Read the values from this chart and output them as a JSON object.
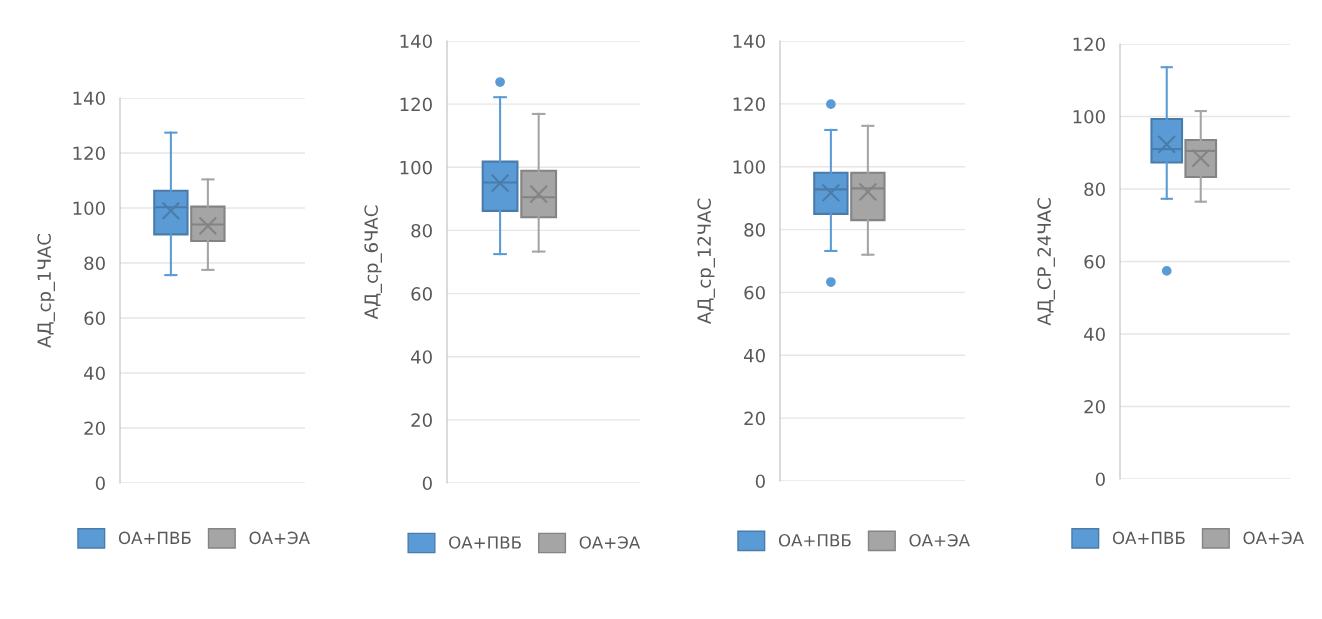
{
  "chart_data": [
    {
      "type": "box",
      "ylabel": "АД_ср_1ЧАС",
      "categories": [
        null
      ],
      "ylim": [
        0,
        140
      ],
      "yticks": [
        0,
        20,
        40,
        60,
        80,
        100,
        120,
        140
      ],
      "grid": "y",
      "legend": "bottom",
      "series": [
        {
          "name": "ОА+ПВБ",
          "color": "#5b9bd5",
          "boxes": [
            {
              "low": 75.6,
              "q1": 90.4,
              "median": 100.3,
              "q3": 106.3,
              "high": 127.4,
              "mean": 99
            }
          ]
        },
        {
          "name": "ОА+ЭА",
          "color": "#a5a5a5",
          "boxes": [
            {
              "low": 77.5,
              "q1": 88,
              "median": 94,
              "q3": 100.5,
              "high": 110.4,
              "mean": 93.5
            }
          ]
        }
      ]
    },
    {
      "type": "box",
      "ylabel": "АД_ср_6ЧАС",
      "categories": [
        null
      ],
      "ylim": [
        0,
        140
      ],
      "yticks": [
        0,
        20,
        40,
        60,
        80,
        100,
        120,
        140
      ],
      "grid": "y",
      "legend": "bottom",
      "series": [
        {
          "name": "ОА+ПВБ",
          "color": "#5b9bd5",
          "boxes": [
            {
              "low": 72.5,
              "q1": 86.2,
              "median": 95.2,
              "q3": 101.8,
              "high": 122.2,
              "mean": 95,
              "outliers": [
                127
              ]
            }
          ]
        },
        {
          "name": "ОА+ЭА",
          "color": "#a5a5a5",
          "boxes": [
            {
              "low": 73.3,
              "q1": 84.2,
              "median": 90.5,
              "q3": 98.9,
              "high": 116.9,
              "mean": 91.5
            }
          ]
        }
      ]
    },
    {
      "type": "box",
      "ylabel": "АД_ср_12ЧАС",
      "categories": [
        null
      ],
      "ylim": [
        0,
        140
      ],
      "yticks": [
        0,
        20,
        40,
        60,
        80,
        100,
        120,
        140
      ],
      "grid": "y",
      "legend": "bottom",
      "series": [
        {
          "name": "ОА+ПВБ",
          "color": "#5b9bd5",
          "boxes": [
            {
              "low": 73.2,
              "q1": 85,
              "median": 92.8,
              "q3": 98.1,
              "high": 111.7,
              "mean": 91.7,
              "outliers": [
                119.9,
                63.3
              ]
            }
          ]
        },
        {
          "name": "ОА+ЭА",
          "color": "#a5a5a5",
          "boxes": [
            {
              "low": 72,
              "q1": 83,
              "median": 93.1,
              "q3": 98.1,
              "high": 113,
              "mean": 92
            }
          ]
        }
      ]
    },
    {
      "type": "box",
      "ylabel": "АД_СР_24ЧАС",
      "categories": [
        null
      ],
      "ylim": [
        0,
        120
      ],
      "yticks": [
        0,
        20,
        40,
        60,
        80,
        100,
        120
      ],
      "grid": "y",
      "legend": "bottom",
      "series": [
        {
          "name": "ОА+ПВБ",
          "color": "#5b9bd5",
          "boxes": [
            {
              "low": 77.3,
              "q1": 87.3,
              "median": 91,
              "q3": 99.3,
              "high": 113.6,
              "mean": 92.3,
              "outliers": [
                57.4
              ]
            }
          ]
        },
        {
          "name": "ОА+ЭА",
          "color": "#a5a5a5",
          "boxes": [
            {
              "low": 76.5,
              "q1": 83.3,
              "median": 90.5,
              "q3": 93.5,
              "high": 101.5,
              "mean": 88.5
            }
          ]
        }
      ]
    }
  ]
}
